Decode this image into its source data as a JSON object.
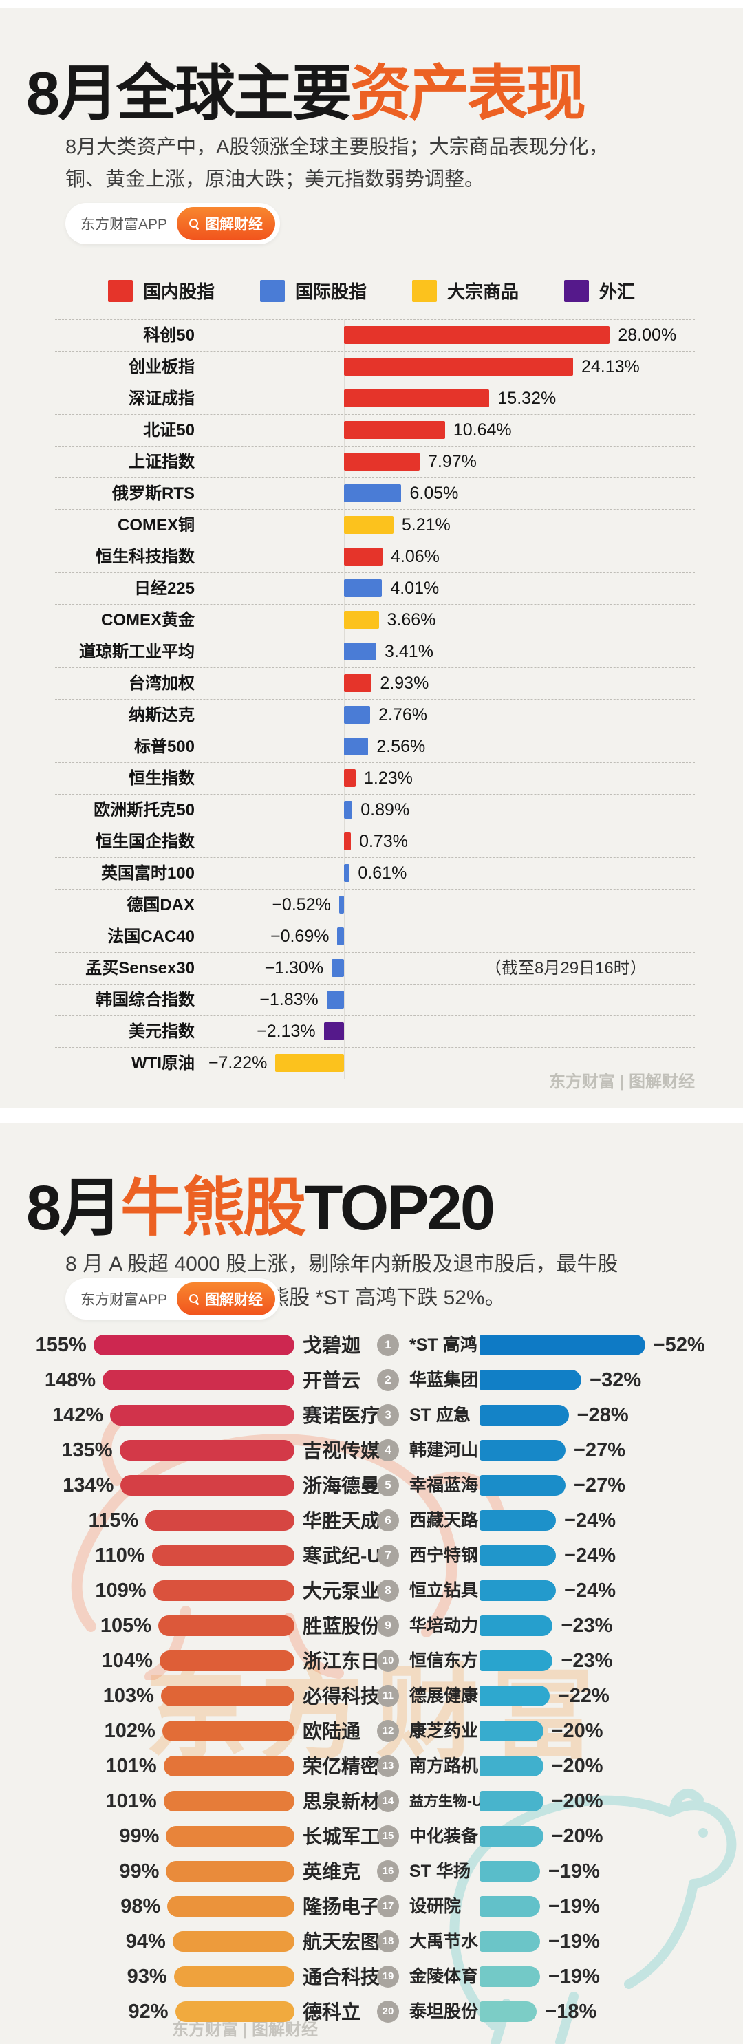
{
  "badge": {
    "app_name": "东方财富APP",
    "channel": "图解财经"
  },
  "section1": {
    "title_black": "8月全球主要",
    "title_orange": "资产表现",
    "subtitle": "8月大类资产中，A股领涨全球主要股指；大宗商品表现分化，\n铜、黄金上涨，原油大跌；美元指数弱势调整。",
    "watermark": "东方财富 | 图解财经"
  },
  "section2": {
    "title_pre": "8月",
    "title_orange": "牛熊股",
    "title_post": "TOP20",
    "subtitle": "8 月 A 股超 4000 股上涨，剔除年内新股及退市股后，最牛股\n戈碧迦上涨 155%，最熊股 *ST 高鸿下跌 52%。",
    "watermark_text": "东方财富",
    "watermark": "东方财富 | 图解财经"
  },
  "chart_data": [
    {
      "type": "bar",
      "orientation": "horizontal",
      "title": "8月全球主要资产表现",
      "unit": "%",
      "annotation": "（截至8月29日16时）",
      "legend": [
        {
          "label": "国内股指",
          "color": "#e5342a"
        },
        {
          "label": "国际股指",
          "color": "#4a7cd6"
        },
        {
          "label": "大宗商品",
          "color": "#fcc21d"
        },
        {
          "label": "外汇",
          "color": "#55198b"
        }
      ],
      "group_colors": {
        "domestic": "#e5342a",
        "intl": "#4a7cd6",
        "commodity": "#fcc21d",
        "fx": "#55198b"
      },
      "rows": [
        {
          "name": "科创50",
          "value": 28.0,
          "display": "28.00%",
          "group": "domestic"
        },
        {
          "name": "创业板指",
          "value": 24.13,
          "display": "24.13%",
          "group": "domestic"
        },
        {
          "name": "深证成指",
          "value": 15.32,
          "display": "15.32%",
          "group": "domestic"
        },
        {
          "name": "北证50",
          "value": 10.64,
          "display": "10.64%",
          "group": "domestic"
        },
        {
          "name": "上证指数",
          "value": 7.97,
          "display": "7.97%",
          "group": "domestic"
        },
        {
          "name": "俄罗斯RTS",
          "value": 6.05,
          "display": "6.05%",
          "group": "intl"
        },
        {
          "name": "COMEX铜",
          "value": 5.21,
          "display": "5.21%",
          "group": "commodity"
        },
        {
          "name": "恒生科技指数",
          "value": 4.06,
          "display": "4.06%",
          "group": "domestic"
        },
        {
          "name": "日经225",
          "value": 4.01,
          "display": "4.01%",
          "group": "intl"
        },
        {
          "name": "COMEX黄金",
          "value": 3.66,
          "display": "3.66%",
          "group": "commodity"
        },
        {
          "name": "道琼斯工业平均",
          "value": 3.41,
          "display": "3.41%",
          "group": "intl"
        },
        {
          "name": "台湾加权",
          "value": 2.93,
          "display": "2.93%",
          "group": "domestic"
        },
        {
          "name": "纳斯达克",
          "value": 2.76,
          "display": "2.76%",
          "group": "intl"
        },
        {
          "name": "标普500",
          "value": 2.56,
          "display": "2.56%",
          "group": "intl"
        },
        {
          "name": "恒生指数",
          "value": 1.23,
          "display": "1.23%",
          "group": "domestic"
        },
        {
          "name": "欧洲斯托克50",
          "value": 0.89,
          "display": "0.89%",
          "group": "intl"
        },
        {
          "name": "恒生国企指数",
          "value": 0.73,
          "display": "0.73%",
          "group": "domestic"
        },
        {
          "name": "英国富时100",
          "value": 0.61,
          "display": "0.61%",
          "group": "intl"
        },
        {
          "name": "德国DAX",
          "value": -0.52,
          "display": "−0.52%",
          "group": "intl"
        },
        {
          "name": "法国CAC40",
          "value": -0.69,
          "display": "−0.69%",
          "group": "intl"
        },
        {
          "name": "孟买Sensex30",
          "value": -1.3,
          "display": "−1.30%",
          "group": "intl",
          "annotation": true
        },
        {
          "name": "韩国综合指数",
          "value": -1.83,
          "display": "−1.83%",
          "group": "intl"
        },
        {
          "name": "美元指数",
          "value": -2.13,
          "display": "−2.13%",
          "group": "fx"
        },
        {
          "name": "WTI原油",
          "value": -7.22,
          "display": "−7.22%",
          "group": "commodity"
        }
      ]
    },
    {
      "type": "bar",
      "orientation": "horizontal",
      "title": "8月牛熊股TOP20",
      "unit": "%",
      "gainer_colors": {
        "start": "#cd2750",
        "mid": "#df6136",
        "end": "#f1aa3e"
      },
      "loser_colors": {
        "start": "#0e7ac5",
        "mid": "#2aa6cf",
        "end": "#7ccdc6"
      },
      "rank_badge_color": "#a9a59f",
      "gainers": [
        {
          "name": "戈碧迦",
          "value": 155,
          "pct": "155%"
        },
        {
          "name": "开普云",
          "value": 148,
          "pct": "148%"
        },
        {
          "name": "赛诺医疗",
          "value": 142,
          "pct": "142%"
        },
        {
          "name": "吉视传媒",
          "value": 135,
          "pct": "135%"
        },
        {
          "name": "浙海德曼",
          "value": 134,
          "pct": "134%"
        },
        {
          "name": "华胜天成",
          "value": 115,
          "pct": "115%"
        },
        {
          "name": "寒武纪-U",
          "value": 110,
          "pct": "110%"
        },
        {
          "name": "大元泵业",
          "value": 109,
          "pct": "109%"
        },
        {
          "name": "胜蓝股份",
          "value": 105,
          "pct": "105%"
        },
        {
          "name": "浙江东日",
          "value": 104,
          "pct": "104%"
        },
        {
          "name": "必得科技",
          "value": 103,
          "pct": "103%"
        },
        {
          "name": "欧陆通",
          "value": 102,
          "pct": "102%"
        },
        {
          "name": "荣亿精密",
          "value": 101,
          "pct": "101%"
        },
        {
          "name": "思泉新材",
          "value": 101,
          "pct": "101%"
        },
        {
          "name": "长城军工",
          "value": 99,
          "pct": "99%"
        },
        {
          "name": "英维克",
          "value": 99,
          "pct": "99%"
        },
        {
          "name": "隆扬电子",
          "value": 98,
          "pct": "98%"
        },
        {
          "name": "航天宏图",
          "value": 94,
          "pct": "94%"
        },
        {
          "name": "通合科技",
          "value": 93,
          "pct": "93%"
        },
        {
          "name": "德科立",
          "value": 92,
          "pct": "92%"
        }
      ],
      "losers": [
        {
          "rank": 1,
          "name": "*ST 高鸿",
          "value": -52,
          "pct": "−52%"
        },
        {
          "rank": 2,
          "name": "华蓝集团",
          "value": -32,
          "pct": "−32%"
        },
        {
          "rank": 3,
          "name": "ST 应急",
          "value": -28,
          "pct": "−28%"
        },
        {
          "rank": 4,
          "name": "韩建河山",
          "value": -27,
          "pct": "−27%"
        },
        {
          "rank": 5,
          "name": "幸福蓝海",
          "value": -27,
          "pct": "−27%"
        },
        {
          "rank": 6,
          "name": "西藏天路",
          "value": -24,
          "pct": "−24%"
        },
        {
          "rank": 7,
          "name": "西宁特钢",
          "value": -24,
          "pct": "−24%"
        },
        {
          "rank": 8,
          "name": "恒立钻具",
          "value": -24,
          "pct": "−24%"
        },
        {
          "rank": 9,
          "name": "华培动力",
          "value": -23,
          "pct": "−23%"
        },
        {
          "rank": 10,
          "name": "恒信东方",
          "value": -23,
          "pct": "−23%"
        },
        {
          "rank": 11,
          "name": "德展健康",
          "value": -22,
          "pct": "−22%"
        },
        {
          "rank": 12,
          "name": "康芝药业",
          "value": -20,
          "pct": "−20%"
        },
        {
          "rank": 13,
          "name": "南方路机",
          "value": -20,
          "pct": "−20%"
        },
        {
          "rank": 14,
          "name": "益方生物-U",
          "value": -20,
          "pct": "−20%",
          "small": true
        },
        {
          "rank": 15,
          "name": "中化装备",
          "value": -20,
          "pct": "−20%"
        },
        {
          "rank": 16,
          "name": "ST 华扬",
          "value": -19,
          "pct": "−19%"
        },
        {
          "rank": 17,
          "name": "设研院",
          "value": -19,
          "pct": "−19%"
        },
        {
          "rank": 18,
          "name": "大禹节水",
          "value": -19,
          "pct": "−19%"
        },
        {
          "rank": 19,
          "name": "金陵体育",
          "value": -19,
          "pct": "−19%"
        },
        {
          "rank": 20,
          "name": "泰坦股份",
          "value": -18,
          "pct": "−18%"
        }
      ]
    }
  ]
}
